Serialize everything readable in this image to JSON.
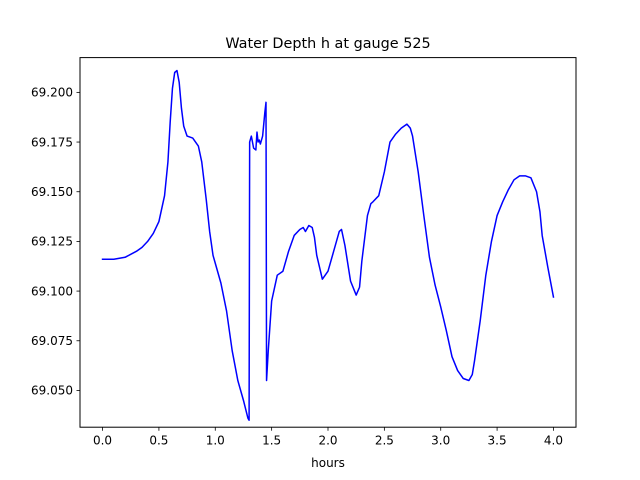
{
  "chart_data": {
    "type": "line",
    "title": "Water Depth h at gauge 525",
    "xlabel": "hours",
    "ylabel": "",
    "xlim": [
      -0.2,
      4.2
    ],
    "ylim": [
      69.0315,
      69.2175
    ],
    "grid": false,
    "xticks": [
      0.0,
      0.5,
      1.0,
      1.5,
      2.0,
      2.5,
      3.0,
      3.5,
      4.0
    ],
    "xtick_labels": [
      "0.0",
      "0.5",
      "1.0",
      "1.5",
      "2.0",
      "2.5",
      "3.0",
      "3.5",
      "4.0"
    ],
    "yticks": [
      69.05,
      69.075,
      69.1,
      69.125,
      69.15,
      69.175,
      69.2
    ],
    "ytick_labels": [
      "69.050",
      "69.075",
      "69.100",
      "69.125",
      "69.150",
      "69.175",
      "69.200"
    ],
    "series": [
      {
        "name": "",
        "color": "#0000ff",
        "x": [
          0.0,
          0.1,
          0.2,
          0.3,
          0.35,
          0.4,
          0.45,
          0.5,
          0.55,
          0.58,
          0.6,
          0.62,
          0.64,
          0.66,
          0.68,
          0.7,
          0.72,
          0.75,
          0.8,
          0.85,
          0.88,
          0.92,
          0.95,
          0.98,
          1.0,
          1.05,
          1.1,
          1.15,
          1.2,
          1.25,
          1.29,
          1.3,
          1.305,
          1.32,
          1.34,
          1.36,
          1.37,
          1.38,
          1.39,
          1.4,
          1.42,
          1.44,
          1.45,
          1.455,
          1.47,
          1.5,
          1.55,
          1.6,
          1.65,
          1.7,
          1.75,
          1.78,
          1.8,
          1.83,
          1.86,
          1.88,
          1.9,
          1.95,
          2.0,
          2.05,
          2.1,
          2.12,
          2.15,
          2.2,
          2.25,
          2.28,
          2.3,
          2.35,
          2.38,
          2.4,
          2.45,
          2.5,
          2.55,
          2.6,
          2.65,
          2.7,
          2.73,
          2.75,
          2.8,
          2.85,
          2.9,
          2.95,
          3.0,
          3.05,
          3.1,
          3.15,
          3.2,
          3.25,
          3.28,
          3.3,
          3.35,
          3.4,
          3.45,
          3.5,
          3.55,
          3.6,
          3.65,
          3.7,
          3.75,
          3.8,
          3.85,
          3.88,
          3.9,
          3.95,
          4.0
        ],
        "y": [
          69.116,
          69.116,
          69.117,
          69.12,
          69.122,
          69.125,
          69.129,
          69.135,
          69.148,
          69.165,
          69.185,
          69.202,
          69.21,
          69.211,
          69.205,
          69.192,
          69.183,
          69.178,
          69.177,
          69.173,
          69.165,
          69.146,
          69.13,
          69.118,
          69.114,
          69.104,
          69.09,
          69.07,
          69.055,
          69.045,
          69.036,
          69.035,
          69.175,
          69.178,
          69.172,
          69.171,
          69.18,
          69.175,
          69.176,
          69.174,
          69.178,
          69.19,
          69.195,
          69.055,
          69.07,
          69.095,
          69.108,
          69.11,
          69.12,
          69.128,
          69.131,
          69.132,
          69.13,
          69.133,
          69.132,
          69.127,
          69.118,
          69.106,
          69.11,
          69.12,
          69.13,
          69.131,
          69.123,
          69.105,
          69.098,
          69.102,
          69.115,
          69.138,
          69.144,
          69.145,
          69.148,
          69.16,
          69.175,
          69.179,
          69.182,
          69.184,
          69.182,
          69.178,
          69.16,
          69.138,
          69.117,
          69.103,
          69.092,
          69.08,
          69.067,
          69.06,
          69.056,
          69.055,
          69.058,
          69.065,
          69.085,
          69.108,
          69.125,
          69.138,
          69.145,
          69.151,
          69.156,
          69.158,
          69.158,
          69.157,
          69.15,
          69.14,
          69.128,
          69.112,
          69.097
        ]
      }
    ]
  }
}
